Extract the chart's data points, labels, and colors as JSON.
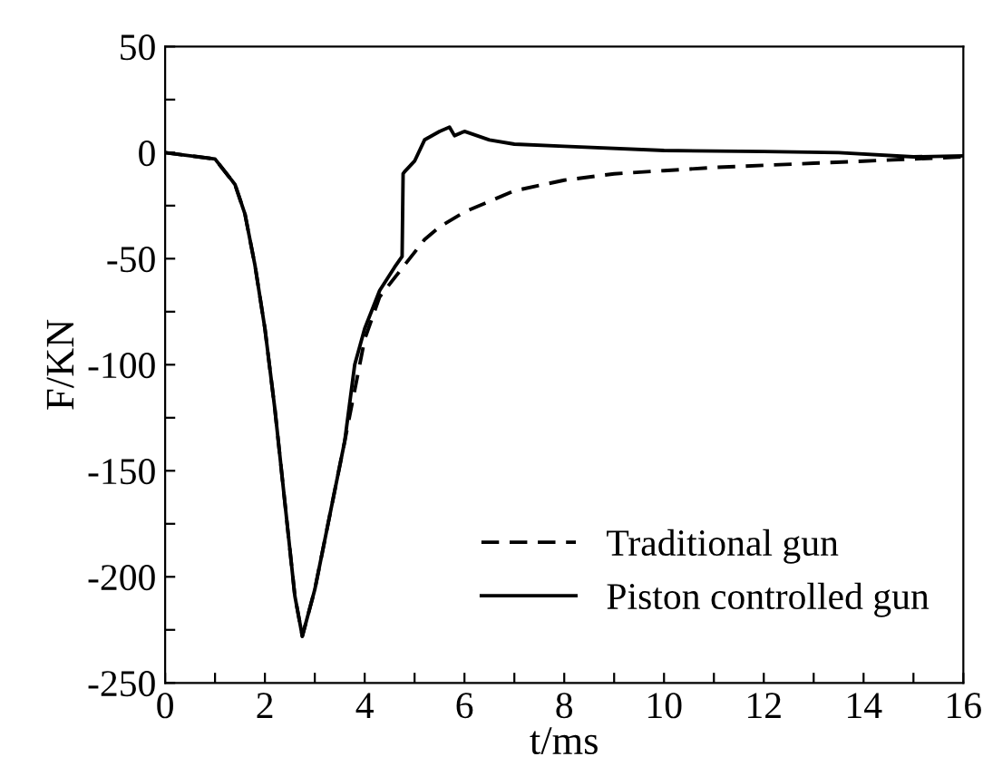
{
  "chart_data": {
    "type": "line",
    "xlabel": "t/ms",
    "ylabel": "F/KN",
    "xlim": [
      0,
      16
    ],
    "ylim": [
      -250,
      50
    ],
    "xticks": [
      0,
      {
        "value": 1,
        "label": null
      },
      2,
      {
        "value": 3,
        "label": null
      },
      4,
      {
        "value": 5,
        "label": null
      },
      6,
      {
        "value": 7,
        "label": null
      },
      8,
      {
        "value": 9,
        "label": null
      },
      10,
      {
        "value": 11,
        "label": null
      },
      12,
      {
        "value": 13,
        "label": null
      },
      14,
      {
        "value": 15,
        "label": null
      },
      16
    ],
    "yticks": [
      -250,
      {
        "value": -225,
        "label": null
      },
      -200,
      {
        "value": -175,
        "label": null
      },
      -150,
      {
        "value": -125,
        "label": null
      },
      -100,
      {
        "value": -75,
        "label": null
      },
      -50,
      {
        "value": -25,
        "label": null
      },
      0,
      {
        "value": 25,
        "label": null
      },
      50
    ],
    "grid": false,
    "legend": "bottom right",
    "series": [
      {
        "name": "Traditional gun",
        "color": "#000000",
        "line_style": "dashed",
        "x": [
          0,
          1,
          1.4,
          1.6,
          1.8,
          2.0,
          2.2,
          2.4,
          2.6,
          2.75,
          3.0,
          3.3,
          3.6,
          3.8,
          4.0,
          4.3,
          4.8,
          5.2,
          5.5,
          6.0,
          7,
          8,
          9,
          10,
          11,
          12,
          13,
          14,
          15,
          16
        ],
        "values": [
          0,
          -3,
          -15,
          -29,
          -53,
          -83,
          -121,
          -165,
          -209,
          -228,
          -206,
          -171,
          -136,
          -112,
          -88,
          -68,
          -53,
          -41,
          -35,
          -28,
          -18,
          -13,
          -10,
          -8.5,
          -7,
          -6,
          -5,
          -4,
          -3,
          -2
        ]
      },
      {
        "name": "Piston controlled gun",
        "color": "#000000",
        "line_style": "solid",
        "x": [
          0,
          1,
          1.4,
          1.6,
          1.8,
          2.0,
          2.2,
          2.4,
          2.6,
          2.75,
          3.0,
          3.3,
          3.6,
          3.8,
          4.0,
          4.3,
          4.6,
          4.75,
          4.77,
          4.8,
          5.0,
          5.2,
          5.5,
          5.7,
          5.8,
          6.0,
          6.5,
          7,
          8,
          10,
          12,
          13.5,
          15,
          16
        ],
        "values": [
          0,
          -3,
          -15,
          -29,
          -53,
          -83,
          -121,
          -165,
          -209,
          -228,
          -206,
          -171,
          -136,
          -100,
          -83,
          -65,
          -54,
          -49,
          -10,
          -9,
          -4,
          6,
          10,
          12,
          8,
          10,
          6,
          4,
          3,
          1,
          0.5,
          0,
          -2,
          -1.5
        ]
      }
    ]
  }
}
